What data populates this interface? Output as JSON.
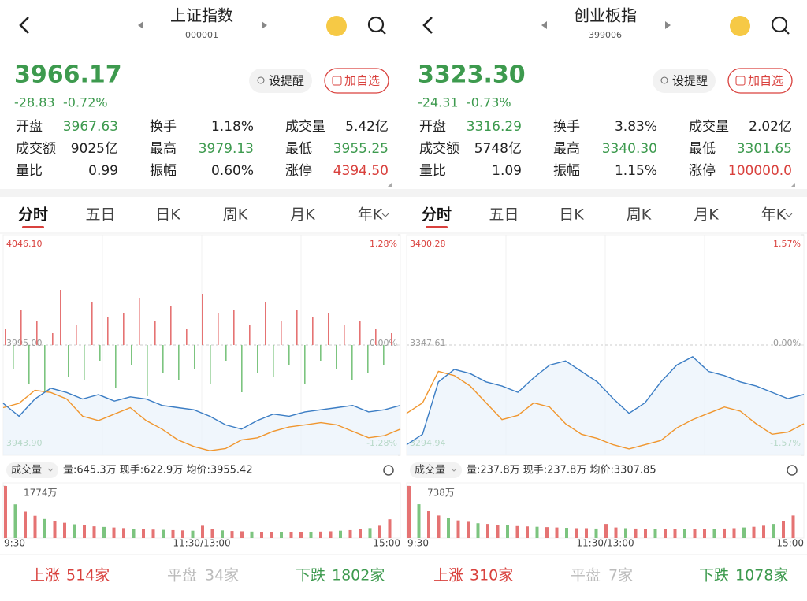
{
  "panels": [
    {
      "header": {
        "title": "上证指数",
        "code": "000001"
      },
      "price": "3966.17",
      "change": "-28.83",
      "change_pct": "-0.72%",
      "buttons": {
        "remind": "设提醒",
        "add": "加自选"
      },
      "stats": [
        {
          "label": "开盘",
          "value": "3967.63",
          "color": "#3d9a4e"
        },
        {
          "label": "换手",
          "value": "1.18%",
          "color": "#222222"
        },
        {
          "label": "成交量",
          "value": "5.42亿",
          "color": "#222222"
        },
        {
          "label": "成交额",
          "value": "9025亿",
          "color": "#222222"
        },
        {
          "label": "最高",
          "value": "3979.13",
          "color": "#3d9a4e"
        },
        {
          "label": "最低",
          "value": "3955.25",
          "color": "#3d9a4e"
        },
        {
          "label": "量比",
          "value": "0.99",
          "color": "#222222"
        },
        {
          "label": "振幅",
          "value": "0.60%",
          "color": "#222222"
        },
        {
          "label": "涨停",
          "value": "4394.50",
          "color": "#d9413d"
        }
      ],
      "tabs": [
        "分时",
        "五日",
        "日K",
        "周K",
        "月K",
        "年K"
      ],
      "chart": {
        "ylim": [
          3943.9,
          4046.1
        ],
        "yticks": [
          {
            "value": 3943.9,
            "label": "3943.90"
          },
          {
            "value": 3995,
            "label": "3995.00"
          },
          {
            "value": 4046.1,
            "label": "4046.10"
          }
        ],
        "y2lim": [
          -1.28,
          1.28
        ],
        "y2ticks": [
          {
            "value": -1.28,
            "label": "-1.28%"
          },
          {
            "value": 0,
            "label": "0.00%"
          },
          {
            "value": 1.28,
            "label": "1.28%"
          }
        ],
        "price_line": {
          "color": "#3b7dc4",
          "values": [
            3968,
            3962,
            3970,
            3975,
            3973,
            3970,
            3972,
            3969,
            3971,
            3970,
            3967,
            3966,
            3965,
            3962,
            3958,
            3956,
            3960,
            3963,
            3962,
            3964,
            3965,
            3966,
            3967,
            3964,
            3965,
            3967
          ]
        },
        "avg_line": {
          "color": "#f0962e",
          "values": [
            3966,
            3968,
            3974,
            3973,
            3970,
            3962,
            3960,
            3963,
            3966,
            3960,
            3956,
            3951,
            3948,
            3946,
            3947,
            3951,
            3952,
            3955,
            3957,
            3958,
            3959,
            3958,
            3955,
            3952,
            3953,
            3956
          ]
        },
        "indicator": {
          "values": [
            20,
            -30,
            45,
            -50,
            30,
            -60,
            15,
            70,
            -40,
            25,
            -45,
            55,
            -20,
            35,
            -55,
            40,
            -25,
            60,
            -65,
            30,
            -35,
            50,
            -45,
            20,
            -30,
            65,
            -50,
            40,
            -20,
            45,
            -60,
            25,
            -35,
            55,
            -40,
            30,
            -25,
            45,
            -50,
            35,
            -20,
            40,
            -30,
            25,
            -45,
            30,
            -35,
            20,
            -25,
            15
          ]
        }
      },
      "volume_header": {
        "label": "成交量",
        "info": "量:645.3万  现手:622.9万  均价:3955.42"
      },
      "volume": {
        "ylim": [
          0,
          1774
        ],
        "yticks": [
          {
            "value": 1774,
            "label": "1774万"
          }
        ],
        "values": [
          1774,
          1150,
          900,
          760,
          650,
          580,
          520,
          470,
          430,
          400,
          380,
          360,
          340,
          320,
          300,
          290,
          280,
          270,
          260,
          250,
          420,
          300,
          260,
          240,
          230,
          220,
          215,
          210,
          205,
          200,
          200,
          210,
          220,
          230,
          250,
          270,
          300,
          340,
          420,
          640
        ]
      },
      "times": [
        "9:30",
        "11:30/13:00",
        "15:00"
      ],
      "breadth": {
        "up": {
          "label": "上涨",
          "count": "514家"
        },
        "flat": {
          "label": "平盘",
          "count": "34家"
        },
        "down": {
          "label": "下跌",
          "count": "1802家"
        }
      }
    },
    {
      "header": {
        "title": "创业板指",
        "code": "399006"
      },
      "price": "3323.30",
      "change": "-24.31",
      "change_pct": "-0.73%",
      "buttons": {
        "remind": "设提醒",
        "add": "加自选"
      },
      "stats": [
        {
          "label": "开盘",
          "value": "3316.29",
          "color": "#3d9a4e"
        },
        {
          "label": "换手",
          "value": "3.83%",
          "color": "#222222"
        },
        {
          "label": "成交量",
          "value": "2.02亿",
          "color": "#222222"
        },
        {
          "label": "成交额",
          "value": "5748亿",
          "color": "#222222"
        },
        {
          "label": "最高",
          "value": "3340.30",
          "color": "#3d9a4e"
        },
        {
          "label": "最低",
          "value": "3301.65",
          "color": "#3d9a4e"
        },
        {
          "label": "量比",
          "value": "1.09",
          "color": "#222222"
        },
        {
          "label": "振幅",
          "value": "1.15%",
          "color": "#222222"
        },
        {
          "label": "涨停",
          "value": "100000.0",
          "color": "#d9413d"
        }
      ],
      "tabs": [
        "分时",
        "五日",
        "日K",
        "周K",
        "月K",
        "年K"
      ],
      "chart": {
        "ylim": [
          3294.94,
          3400.28
        ],
        "yticks": [
          {
            "value": 3294.94,
            "label": "3294.94"
          },
          {
            "value": 3347.61,
            "label": "3347.61"
          },
          {
            "value": 3400.28,
            "label": "3400.28"
          }
        ],
        "y2lim": [
          -1.57,
          1.57
        ],
        "y2ticks": [
          {
            "value": -1.57,
            "label": "-1.57%"
          },
          {
            "value": 0,
            "label": "0.00%"
          },
          {
            "value": 1.57,
            "label": "1.57%"
          }
        ],
        "price_line": {
          "color": "#3b7dc4",
          "values": [
            3300,
            3305,
            3330,
            3336,
            3334,
            3330,
            3328,
            3325,
            3332,
            3338,
            3340,
            3335,
            3330,
            3322,
            3315,
            3320,
            3330,
            3338,
            3342,
            3335,
            3333,
            3330,
            3328,
            3325,
            3322,
            3324
          ]
        },
        "avg_line": {
          "color": "#f0962e",
          "values": [
            3315,
            3320,
            3335,
            3333,
            3328,
            3320,
            3312,
            3314,
            3320,
            3318,
            3310,
            3305,
            3303,
            3300,
            3298,
            3300,
            3302,
            3308,
            3312,
            3315,
            3318,
            3316,
            3310,
            3305,
            3306,
            3310
          ]
        }
      },
      "volume_header": {
        "label": "成交量",
        "info": "量:237.8万  现手:237.8万  均价:3307.85"
      },
      "volume": {
        "ylim": [
          0,
          738
        ],
        "yticks": [
          {
            "value": 738,
            "label": "738万"
          }
        ],
        "values": [
          738,
          480,
          380,
          320,
          280,
          250,
          230,
          210,
          200,
          190,
          180,
          170,
          165,
          160,
          155,
          150,
          145,
          140,
          140,
          135,
          200,
          150,
          140,
          135,
          130,
          128,
          126,
          125,
          125,
          125,
          128,
          130,
          135,
          140,
          150,
          160,
          175,
          200,
          240,
          320
        ]
      },
      "times": [
        "9:30",
        "11:30/13:00",
        "15:00"
      ],
      "breadth": {
        "up": {
          "label": "上涨",
          "count": "310家"
        },
        "flat": {
          "label": "平盘",
          "count": "7家"
        },
        "down": {
          "label": "下跌",
          "count": "1078家"
        }
      }
    }
  ]
}
